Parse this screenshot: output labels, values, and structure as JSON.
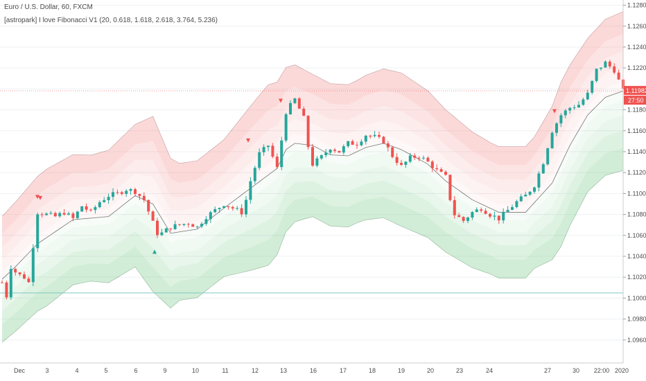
{
  "header": {
    "title": "Euro / U.S. Dollar, 60, FXCM",
    "indicator": "[astropark] I love Fibonacci V1 (20, 0.618, 1.618, 2.618, 3.764, 5.236)"
  },
  "colors": {
    "up": "#26a69a",
    "down": "#ef5350",
    "band_upper": "#f47878",
    "band_lower": "#59c06e",
    "basis": "#757575",
    "last_price": "#ef5350",
    "hline": "#7fc9c2"
  },
  "chart_data": {
    "type": "candlestick",
    "title": "Euro / U.S. Dollar, 60, FXCM",
    "ylim": [
      1.0938,
      1.1285
    ],
    "yticks": [
      "1.12800",
      "1.12600",
      "1.12400",
      "1.12200",
      "1.12000",
      "1.11800",
      "1.11600",
      "1.11400",
      "1.11200",
      "1.11000",
      "1.10800",
      "1.10600",
      "1.10400",
      "1.10200",
      "1.10000",
      "1.09800",
      "1.09600"
    ],
    "xticks": [
      "Dec",
      "3",
      "4",
      "5",
      "6",
      "9",
      "10",
      "11",
      "12",
      "13",
      "16",
      "17",
      "18",
      "19",
      "20",
      "23",
      "24",
      "27",
      "30",
      "22:00",
      "2020"
    ],
    "last_price": "1.11982",
    "countdown": "27:50",
    "horizontal_line": 1.1005,
    "basis_path": [
      [
        0,
        1.1018
      ],
      [
        3,
        1.103
      ],
      [
        8,
        1.1052
      ],
      [
        16,
        1.1075
      ],
      [
        24,
        1.1078
      ],
      [
        30,
        1.1098
      ],
      [
        34,
        1.109
      ],
      [
        38,
        1.1062
      ],
      [
        44,
        1.1066
      ],
      [
        50,
        1.1086
      ],
      [
        56,
        1.1105
      ],
      [
        62,
        1.1124
      ],
      [
        64,
        1.1142
      ],
      [
        66,
        1.1148
      ],
      [
        70,
        1.1146
      ],
      [
        74,
        1.1137
      ],
      [
        78,
        1.1136
      ],
      [
        82,
        1.1144
      ],
      [
        86,
        1.1148
      ],
      [
        90,
        1.1142
      ],
      [
        96,
        1.1128
      ],
      [
        100,
        1.1112
      ],
      [
        106,
        1.1094
      ],
      [
        112,
        1.1082
      ],
      [
        118,
        1.1082
      ],
      [
        124,
        1.111
      ],
      [
        128,
        1.1146
      ],
      [
        132,
        1.1175
      ],
      [
        136,
        1.1192
      ],
      [
        140,
        1.1198
      ]
    ],
    "band_multipliers": [
      0.618,
      1.618,
      2.618,
      3.764,
      5.236
    ],
    "band_width_path": [
      [
        0,
        0.00115
      ],
      [
        10,
        0.00125
      ],
      [
        20,
        0.00115
      ],
      [
        30,
        0.0013
      ],
      [
        34,
        0.0016
      ],
      [
        40,
        0.00125
      ],
      [
        50,
        0.00125
      ],
      [
        56,
        0.0015
      ],
      [
        60,
        0.00165
      ],
      [
        64,
        0.0015
      ],
      [
        70,
        0.0013
      ],
      [
        80,
        0.0013
      ],
      [
        90,
        0.0014
      ],
      [
        100,
        0.0013
      ],
      [
        110,
        0.0012
      ],
      [
        120,
        0.0012
      ],
      [
        126,
        0.0015
      ],
      [
        132,
        0.0014
      ],
      [
        140,
        0.00145
      ]
    ],
    "price_path": [
      [
        0,
        1.1015
      ],
      [
        1,
        1.1002
      ],
      [
        2,
        1.103
      ],
      [
        3,
        1.1025
      ],
      [
        4,
        1.1022
      ],
      [
        5,
        1.102
      ],
      [
        6,
        1.1015
      ],
      [
        7,
        1.105
      ],
      [
        8,
        1.1082
      ],
      [
        10,
        1.108
      ],
      [
        12,
        1.1078
      ],
      [
        14,
        1.1082
      ],
      [
        16,
        1.1076
      ],
      [
        18,
        1.1088
      ],
      [
        20,
        1.1082
      ],
      [
        22,
        1.1092
      ],
      [
        24,
        1.1098
      ],
      [
        26,
        1.11
      ],
      [
        28,
        1.1104
      ],
      [
        30,
        1.1102
      ],
      [
        32,
        1.1094
      ],
      [
        34,
        1.1072
      ],
      [
        35,
        1.1062
      ],
      [
        36,
        1.1062
      ],
      [
        38,
        1.1068
      ],
      [
        40,
        1.107
      ],
      [
        42,
        1.1072
      ],
      [
        44,
        1.1068
      ],
      [
        46,
        1.1078
      ],
      [
        48,
        1.1084
      ],
      [
        50,
        1.109
      ],
      [
        52,
        1.1086
      ],
      [
        54,
        1.1082
      ],
      [
        55,
        1.1094
      ],
      [
        56,
        1.1112
      ],
      [
        58,
        1.1138
      ],
      [
        60,
        1.1146
      ],
      [
        62,
        1.1124
      ],
      [
        64,
        1.1178
      ],
      [
        66,
        1.119
      ],
      [
        68,
        1.1172
      ],
      [
        69,
        1.1145
      ],
      [
        70,
        1.1128
      ],
      [
        72,
        1.1135
      ],
      [
        74,
        1.1144
      ],
      [
        76,
        1.114
      ],
      [
        78,
        1.1148
      ],
      [
        80,
        1.1148
      ],
      [
        82,
        1.1156
      ],
      [
        84,
        1.1154
      ],
      [
        86,
        1.115
      ],
      [
        88,
        1.1136
      ],
      [
        90,
        1.1126
      ],
      [
        92,
        1.1134
      ],
      [
        94,
        1.1136
      ],
      [
        96,
        1.113
      ],
      [
        98,
        1.1122
      ],
      [
        100,
        1.1116
      ],
      [
        101,
        1.1095
      ],
      [
        102,
        1.108
      ],
      [
        104,
        1.1074
      ],
      [
        106,
        1.1082
      ],
      [
        108,
        1.1086
      ],
      [
        110,
        1.108
      ],
      [
        112,
        1.1076
      ],
      [
        114,
        1.1084
      ],
      [
        116,
        1.1092
      ],
      [
        118,
        1.1098
      ],
      [
        120,
        1.1108
      ],
      [
        122,
        1.113
      ],
      [
        124,
        1.116
      ],
      [
        126,
        1.1175
      ],
      [
        128,
        1.1182
      ],
      [
        130,
        1.1185
      ],
      [
        132,
        1.1195
      ],
      [
        134,
        1.1218
      ],
      [
        136,
        1.1225
      ],
      [
        138,
        1.1218
      ],
      [
        140,
        1.1198
      ]
    ],
    "signals": [
      {
        "type": "sell",
        "x": 54,
        "y": 1.1096
      },
      {
        "type": "sell",
        "x": 58,
        "y": 1.1095
      },
      {
        "type": "buy",
        "x": 223,
        "y": 1.1045
      },
      {
        "type": "sell",
        "x": 358,
        "y": 1.115
      },
      {
        "type": "sell",
        "x": 405,
        "y": 1.1188
      },
      {
        "type": "sell",
        "x": 800,
        "y": 1.1178
      }
    ]
  }
}
